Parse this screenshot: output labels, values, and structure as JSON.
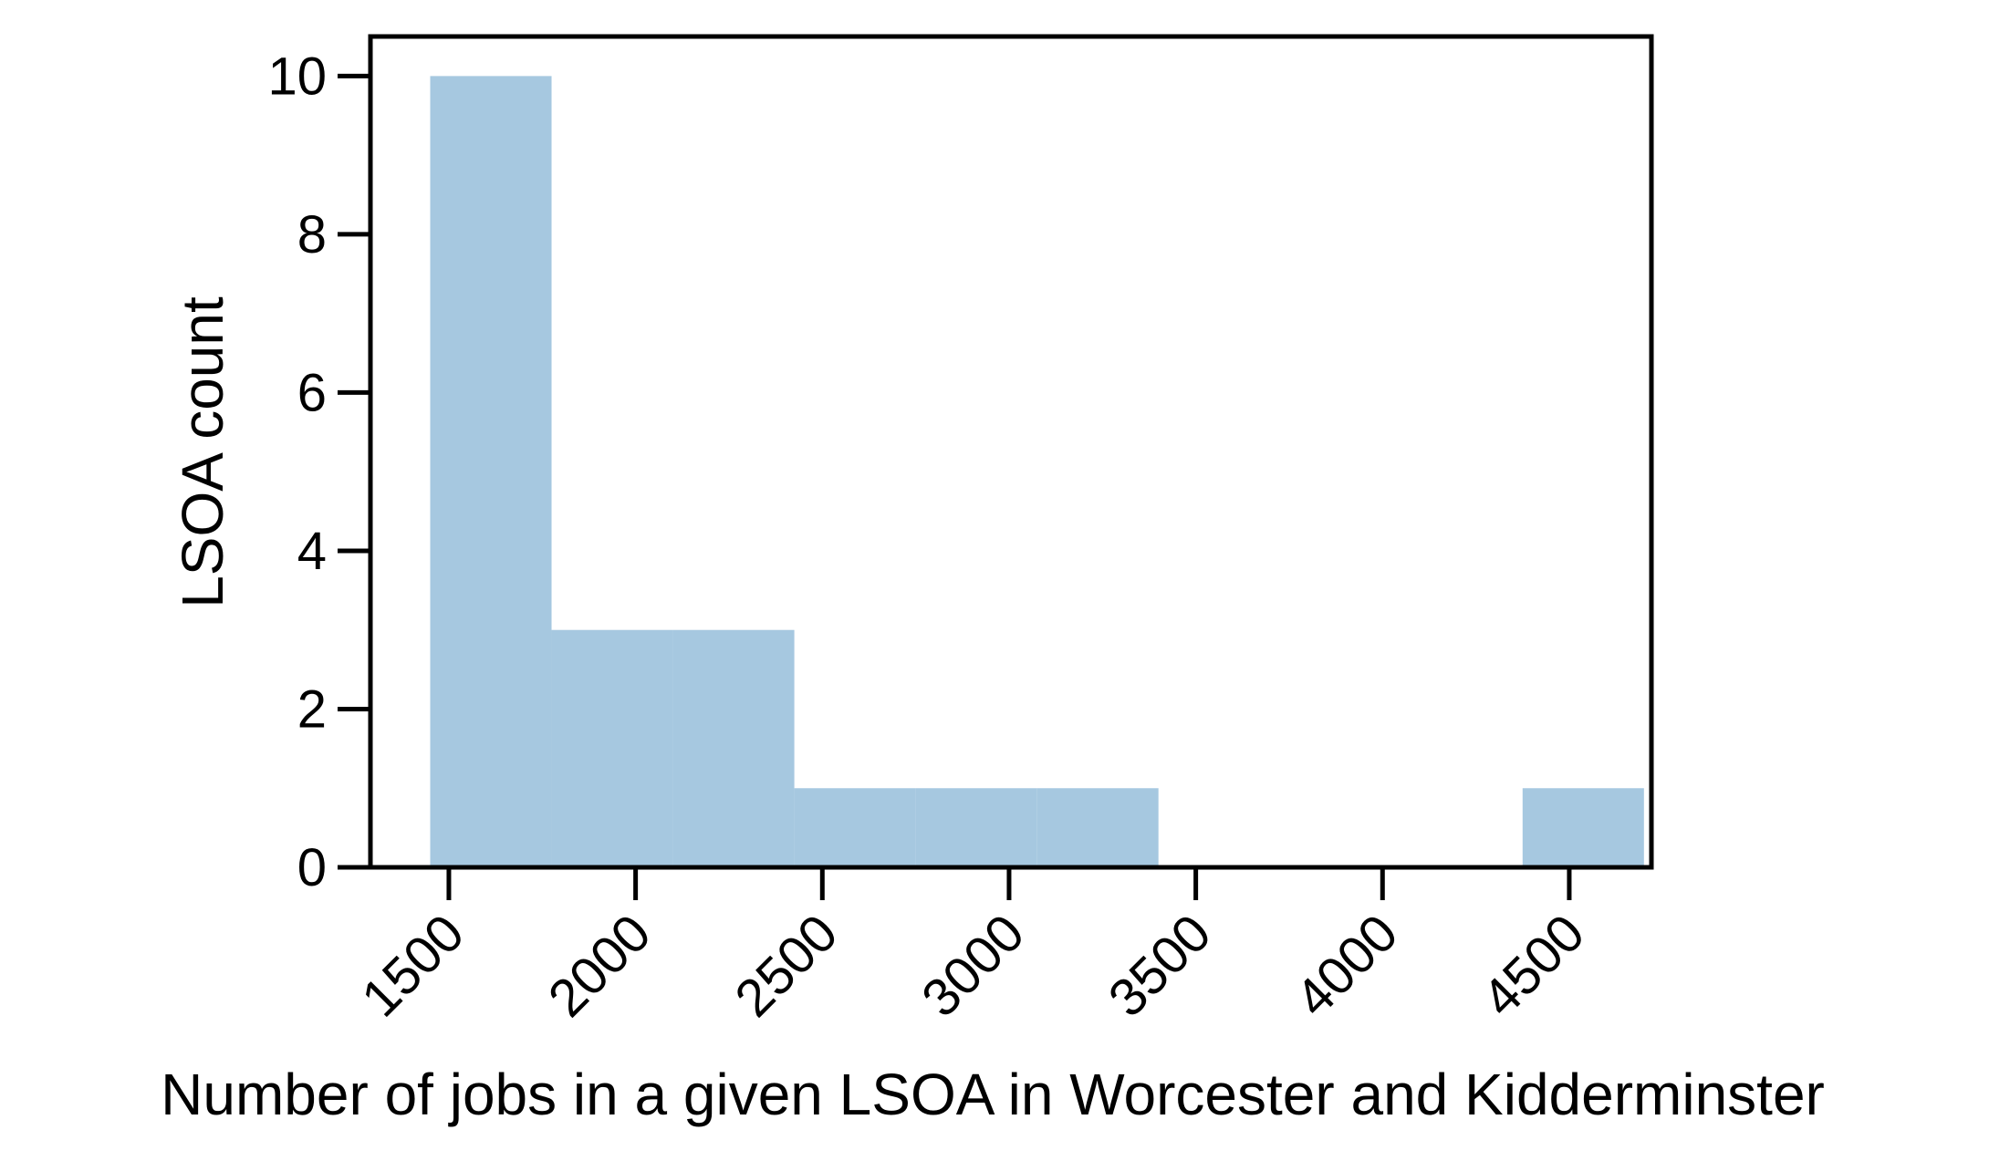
{
  "chart_data": {
    "type": "bar",
    "subtype": "histogram",
    "title": "",
    "xlabel": "Number of jobs in a given LSOA in Worcester and Kidderminster",
    "ylabel": "LSOA count",
    "bins": [
      {
        "start": 1450,
        "end": 1775,
        "count": 10
      },
      {
        "start": 1775,
        "end": 2100,
        "count": 3
      },
      {
        "start": 2100,
        "end": 2425,
        "count": 3
      },
      {
        "start": 2425,
        "end": 2750,
        "count": 1
      },
      {
        "start": 2750,
        "end": 3075,
        "count": 1
      },
      {
        "start": 3075,
        "end": 3400,
        "count": 1
      },
      {
        "start": 3400,
        "end": 3725,
        "count": 0
      },
      {
        "start": 3725,
        "end": 4050,
        "count": 0
      },
      {
        "start": 4050,
        "end": 4375,
        "count": 0
      },
      {
        "start": 4375,
        "end": 4700,
        "count": 1
      }
    ],
    "xlim": [
      1290,
      4720
    ],
    "ylim": [
      0,
      10.5
    ],
    "x_ticks": [
      1500,
      2000,
      2500,
      3000,
      3500,
      4000,
      4500
    ],
    "y_ticks": [
      0,
      2,
      4,
      6,
      8,
      10
    ],
    "x_tick_labels": [
      "1500",
      "2000",
      "2500",
      "3000",
      "3500",
      "4000",
      "4500"
    ],
    "y_tick_labels": [
      "0",
      "2",
      "4",
      "6",
      "8",
      "10"
    ],
    "x_tick_rotation": -45,
    "grid": false,
    "legend": "none",
    "colors": {
      "bars": "#a6c8e0",
      "axes": "#000000",
      "background": "#ffffff"
    }
  }
}
